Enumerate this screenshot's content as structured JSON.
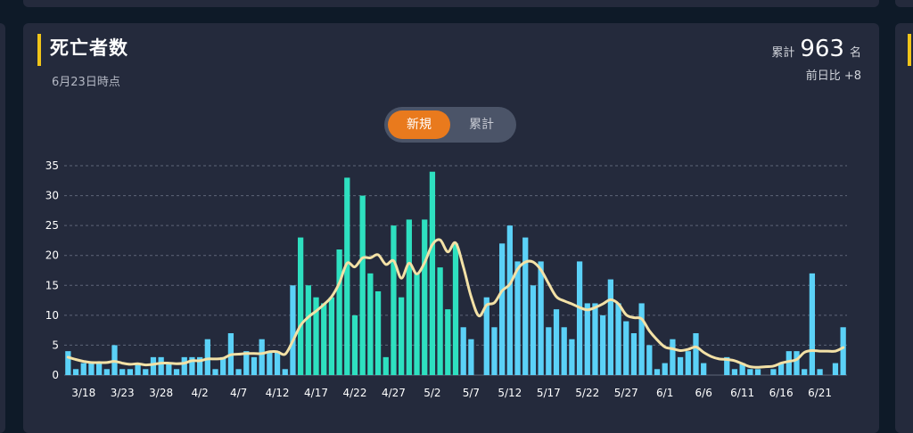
{
  "header": {
    "title": "死亡者数",
    "as_of": "6月23日時点",
    "total_label": "累計",
    "total_value": "963",
    "total_unit": "名",
    "diff_text": "前日比 +8"
  },
  "toggle": {
    "new_label": "新規",
    "cumulative_label": "累計",
    "active": "new"
  },
  "colors": {
    "accent": "#f0c419",
    "bar_blue": "#5bd1f7",
    "bar_green": "#2ee0c0",
    "avg_line": "#f3e1a6",
    "toggle_active": "#e97a1d"
  },
  "chart_data": {
    "type": "bar",
    "ylim": [
      0,
      35
    ],
    "yticks": [
      0,
      5,
      10,
      15,
      20,
      25,
      30,
      35
    ],
    "grid": true,
    "xtick_labels": [
      "3/18",
      "3/23",
      "3/28",
      "4/2",
      "4/7",
      "4/12",
      "4/17",
      "4/22",
      "4/27",
      "5/2",
      "5/7",
      "5/12",
      "5/17",
      "5/22",
      "5/27",
      "6/1",
      "6/6",
      "6/11",
      "6/16",
      "6/21"
    ],
    "first_tick_index": 2,
    "tick_interval": 5,
    "highlight_range": [
      30,
      50
    ],
    "series": [
      {
        "values": [
          4,
          1,
          2,
          2,
          2,
          1,
          5,
          1,
          1,
          2,
          1,
          3,
          3,
          2,
          1,
          3,
          3,
          3,
          6,
          1,
          3,
          7,
          1,
          4,
          3,
          6,
          4,
          4,
          1,
          15,
          23,
          15,
          13,
          12,
          13,
          21,
          33,
          10,
          30,
          17,
          14,
          3,
          25,
          13,
          26,
          17,
          26,
          34,
          18,
          11,
          22,
          8,
          6,
          0,
          13,
          8,
          22,
          25,
          19,
          23,
          15,
          19,
          8,
          11,
          8,
          6,
          19,
          12,
          12,
          10,
          16,
          12,
          9,
          7,
          12,
          5,
          1,
          2,
          6,
          3,
          4,
          7,
          2,
          0,
          0,
          3,
          1,
          2,
          1,
          1,
          0,
          1,
          2,
          4,
          4,
          1,
          17,
          1,
          0,
          2,
          8
        ],
        "moving_average": [
          3,
          2.6,
          2.3,
          2.1,
          2.1,
          2.1,
          2.3,
          2,
          1.8,
          1.9,
          1.7,
          1.8,
          2,
          2,
          1.9,
          2,
          2.4,
          2.4,
          2.7,
          2.7,
          2.8,
          3.4,
          3.5,
          3.6,
          3.6,
          3.6,
          3.9,
          3.9,
          3.5,
          5.7,
          8.3,
          9.7,
          10.7,
          11.8,
          13.1,
          15.4,
          18.7,
          18.1,
          19.6,
          19.6,
          20.1,
          18.5,
          19.1,
          16.2,
          18.7,
          16.9,
          18.8,
          21.8,
          22.6,
          20.6,
          22.1,
          18.1,
          13.1,
          9.9,
          11.7,
          12.1,
          14.1,
          15.2,
          17.7,
          18.9,
          18.9,
          17.6,
          15.3,
          13.1,
          12.4,
          11.9,
          11.3,
          10.9,
          11.3,
          11.9,
          12.6,
          11.9,
          10.1,
          9.6,
          9.4,
          7.4,
          5.9,
          4.7,
          4.4,
          4.1,
          4.3,
          4.7,
          3.8,
          3.1,
          2.7,
          2.6,
          2.4,
          1.9,
          1.4,
          1.3,
          1.4,
          1.5,
          2,
          2.3,
          2.6,
          3.8,
          4.1,
          4,
          4,
          4,
          4.6
        ]
      }
    ]
  }
}
